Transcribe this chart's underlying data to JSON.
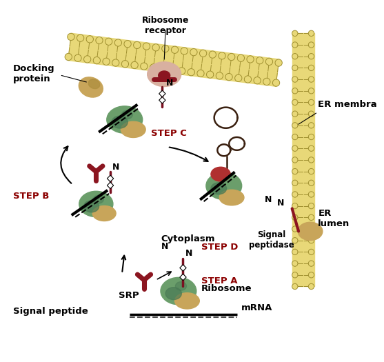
{
  "background_color": "#ffffff",
  "labels": {
    "ribosome_receptor": "Ribosome\nreceptor",
    "er_membrane": "ER membra",
    "docking_protein": "Docking\nprotein",
    "step_c": "STEP C",
    "step_b": "STEP B",
    "step_a": "STEP A",
    "ribosome": "Ribosome",
    "step_d": "STEP D",
    "cytoplasm": "Cytoplasm",
    "srp": "SRP",
    "signal_peptide": "Signal peptide",
    "mrna": "mRNA",
    "er_lumen": "ER\nlumen",
    "signal_peptidase": "Signal\npeptidase"
  },
  "colors": {
    "ribosome_green": "#6b9e6b",
    "ribosome_green2": "#4a7a55",
    "ribosome_tan": "#c8a55a",
    "srp_dark_red": "#8b1520",
    "membrane_tan": "#e8d878",
    "membrane_circle": "#e0cc60",
    "membrane_dark": "#a09030",
    "signal_peptide_color": "#7a1020",
    "docking_protein_color": "#c8a55a",
    "ribosome_receptor_color": "#d8b0a0",
    "step_color": "#8b0000",
    "protein_loop_color": "#3a2010"
  },
  "figsize": [
    5.57,
    5.25
  ],
  "dpi": 100
}
